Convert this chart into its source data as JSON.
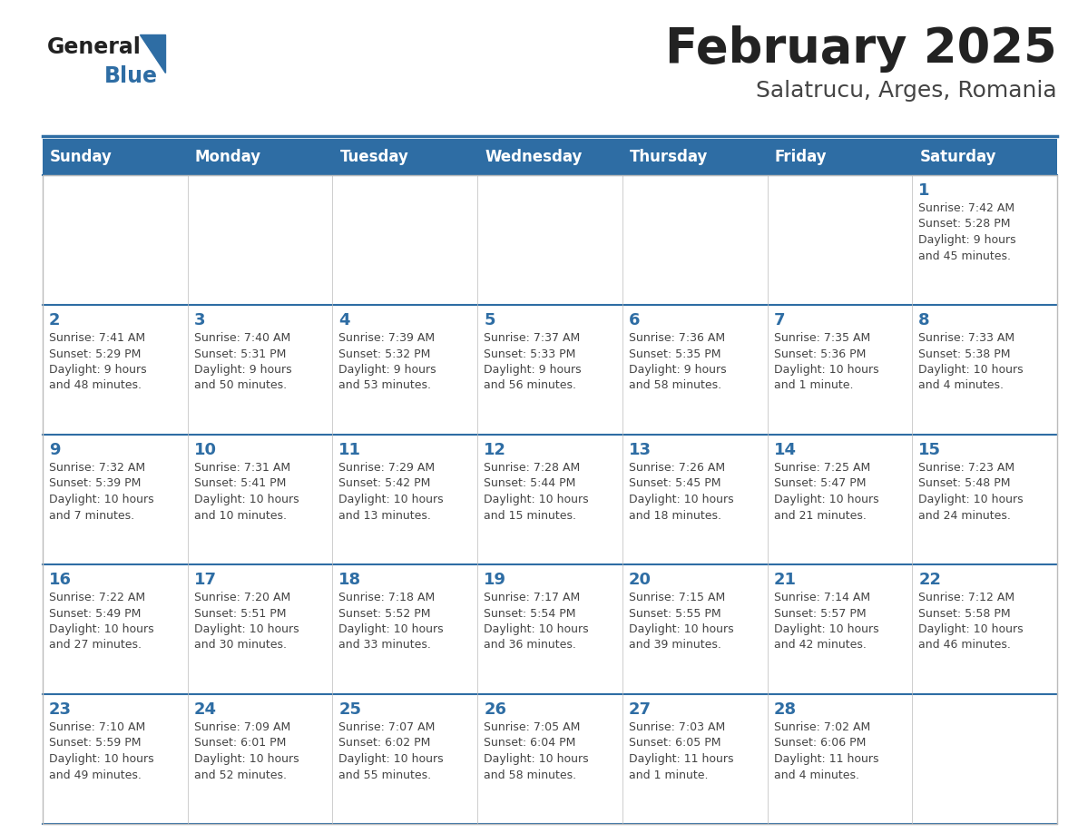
{
  "title": "February 2025",
  "subtitle": "Salatrucu, Arges, Romania",
  "header_bg": "#2E6DA4",
  "header_text_color": "#FFFFFF",
  "cell_bg_white": "#FFFFFF",
  "border_color": "#2E6DA4",
  "cell_line_color": "#BBBBBB",
  "day_names": [
    "Sunday",
    "Monday",
    "Tuesday",
    "Wednesday",
    "Thursday",
    "Friday",
    "Saturday"
  ],
  "title_color": "#222222",
  "subtitle_color": "#444444",
  "day_number_color": "#2E6DA4",
  "info_color": "#444444",
  "logo_general_color": "#222222",
  "logo_blue_color": "#2E6DA4",
  "weeks": [
    [
      {
        "day": 0,
        "info": ""
      },
      {
        "day": 0,
        "info": ""
      },
      {
        "day": 0,
        "info": ""
      },
      {
        "day": 0,
        "info": ""
      },
      {
        "day": 0,
        "info": ""
      },
      {
        "day": 0,
        "info": ""
      },
      {
        "day": 1,
        "info": "Sunrise: 7:42 AM\nSunset: 5:28 PM\nDaylight: 9 hours\nand 45 minutes."
      }
    ],
    [
      {
        "day": 2,
        "info": "Sunrise: 7:41 AM\nSunset: 5:29 PM\nDaylight: 9 hours\nand 48 minutes."
      },
      {
        "day": 3,
        "info": "Sunrise: 7:40 AM\nSunset: 5:31 PM\nDaylight: 9 hours\nand 50 minutes."
      },
      {
        "day": 4,
        "info": "Sunrise: 7:39 AM\nSunset: 5:32 PM\nDaylight: 9 hours\nand 53 minutes."
      },
      {
        "day": 5,
        "info": "Sunrise: 7:37 AM\nSunset: 5:33 PM\nDaylight: 9 hours\nand 56 minutes."
      },
      {
        "day": 6,
        "info": "Sunrise: 7:36 AM\nSunset: 5:35 PM\nDaylight: 9 hours\nand 58 minutes."
      },
      {
        "day": 7,
        "info": "Sunrise: 7:35 AM\nSunset: 5:36 PM\nDaylight: 10 hours\nand 1 minute."
      },
      {
        "day": 8,
        "info": "Sunrise: 7:33 AM\nSunset: 5:38 PM\nDaylight: 10 hours\nand 4 minutes."
      }
    ],
    [
      {
        "day": 9,
        "info": "Sunrise: 7:32 AM\nSunset: 5:39 PM\nDaylight: 10 hours\nand 7 minutes."
      },
      {
        "day": 10,
        "info": "Sunrise: 7:31 AM\nSunset: 5:41 PM\nDaylight: 10 hours\nand 10 minutes."
      },
      {
        "day": 11,
        "info": "Sunrise: 7:29 AM\nSunset: 5:42 PM\nDaylight: 10 hours\nand 13 minutes."
      },
      {
        "day": 12,
        "info": "Sunrise: 7:28 AM\nSunset: 5:44 PM\nDaylight: 10 hours\nand 15 minutes."
      },
      {
        "day": 13,
        "info": "Sunrise: 7:26 AM\nSunset: 5:45 PM\nDaylight: 10 hours\nand 18 minutes."
      },
      {
        "day": 14,
        "info": "Sunrise: 7:25 AM\nSunset: 5:47 PM\nDaylight: 10 hours\nand 21 minutes."
      },
      {
        "day": 15,
        "info": "Sunrise: 7:23 AM\nSunset: 5:48 PM\nDaylight: 10 hours\nand 24 minutes."
      }
    ],
    [
      {
        "day": 16,
        "info": "Sunrise: 7:22 AM\nSunset: 5:49 PM\nDaylight: 10 hours\nand 27 minutes."
      },
      {
        "day": 17,
        "info": "Sunrise: 7:20 AM\nSunset: 5:51 PM\nDaylight: 10 hours\nand 30 minutes."
      },
      {
        "day": 18,
        "info": "Sunrise: 7:18 AM\nSunset: 5:52 PM\nDaylight: 10 hours\nand 33 minutes."
      },
      {
        "day": 19,
        "info": "Sunrise: 7:17 AM\nSunset: 5:54 PM\nDaylight: 10 hours\nand 36 minutes."
      },
      {
        "day": 20,
        "info": "Sunrise: 7:15 AM\nSunset: 5:55 PM\nDaylight: 10 hours\nand 39 minutes."
      },
      {
        "day": 21,
        "info": "Sunrise: 7:14 AM\nSunset: 5:57 PM\nDaylight: 10 hours\nand 42 minutes."
      },
      {
        "day": 22,
        "info": "Sunrise: 7:12 AM\nSunset: 5:58 PM\nDaylight: 10 hours\nand 46 minutes."
      }
    ],
    [
      {
        "day": 23,
        "info": "Sunrise: 7:10 AM\nSunset: 5:59 PM\nDaylight: 10 hours\nand 49 minutes."
      },
      {
        "day": 24,
        "info": "Sunrise: 7:09 AM\nSunset: 6:01 PM\nDaylight: 10 hours\nand 52 minutes."
      },
      {
        "day": 25,
        "info": "Sunrise: 7:07 AM\nSunset: 6:02 PM\nDaylight: 10 hours\nand 55 minutes."
      },
      {
        "day": 26,
        "info": "Sunrise: 7:05 AM\nSunset: 6:04 PM\nDaylight: 10 hours\nand 58 minutes."
      },
      {
        "day": 27,
        "info": "Sunrise: 7:03 AM\nSunset: 6:05 PM\nDaylight: 11 hours\nand 1 minute."
      },
      {
        "day": 28,
        "info": "Sunrise: 7:02 AM\nSunset: 6:06 PM\nDaylight: 11 hours\nand 4 minutes."
      },
      {
        "day": 0,
        "info": ""
      }
    ]
  ]
}
